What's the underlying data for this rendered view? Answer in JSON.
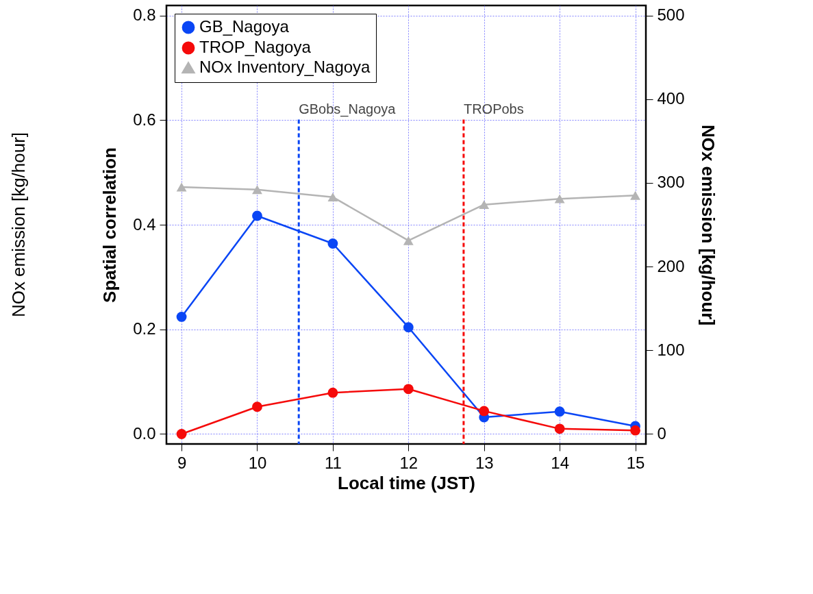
{
  "chart_data": {
    "type": "line",
    "xlabel": "Local time (JST)",
    "ylabel": "Spatial correlation",
    "y2label": "NOx emission [kg/hour]",
    "x": [
      9,
      10,
      11,
      12,
      13,
      14,
      15
    ],
    "xlim": [
      8.8,
      15.14
    ],
    "xticks": [
      9,
      10,
      11,
      12,
      13,
      14,
      15
    ],
    "ylim": [
      -0.019,
      0.819
    ],
    "yticks": [
      {
        "value": 0,
        "label": "0.0"
      },
      0.2,
      0.4,
      0.6,
      0.8
    ],
    "y2lim": [
      -12,
      512
    ],
    "y2ticks": [
      0,
      100,
      200,
      300,
      400,
      500
    ],
    "series": [
      {
        "name": "GB_Nagoya",
        "color": "#0a46f5",
        "marker": "circle",
        "values": [
          0.224,
          0.417,
          0.364,
          0.204,
          0.032,
          0.043,
          0.015
        ]
      },
      {
        "name": "TROP_Nagoya",
        "color": "#f50a0a",
        "marker": "circle",
        "values": [
          0.0,
          0.052,
          0.079,
          0.086,
          0.044,
          0.01,
          0.007
        ]
      },
      {
        "name": "NOx Inventory_Nagoya",
        "color": "#b4b4b4",
        "marker": "triangle",
        "axis": "y2",
        "values": [
          295,
          292,
          283,
          231,
          274,
          281,
          285
        ]
      }
    ],
    "ref_lines": [
      {
        "axis": "x",
        "value": 10.55,
        "label": "GBobs_Nagoya",
        "color": "#0a46f5",
        "line_style": "dashed"
      },
      {
        "axis": "x",
        "value": 12.73,
        "label": "TROPobs",
        "color": "#f50a0a",
        "line_style": "dashed"
      }
    ],
    "annotations": [
      "NOx emission [kg/hour]"
    ],
    "grid": true,
    "legend": "top left",
    "line_style": "solid"
  }
}
